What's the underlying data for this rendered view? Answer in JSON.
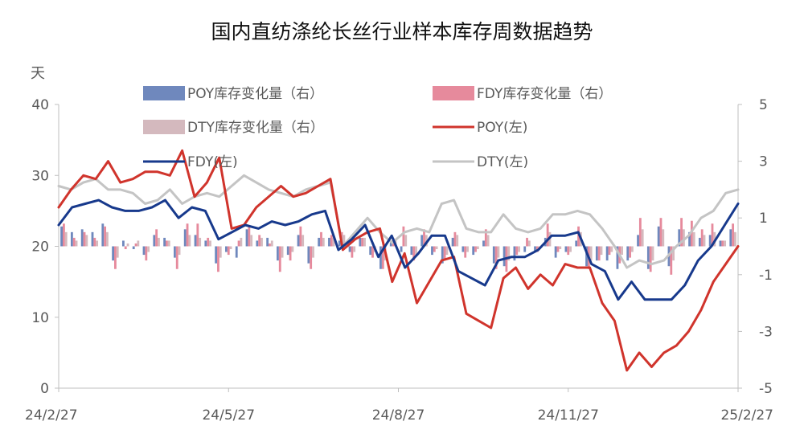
{
  "chart_data": {
    "type": "line",
    "title": "国内直纺涤纶长丝行业样本库存周数据趋势",
    "y_left_unit": "天",
    "ylim_left": [
      0,
      40
    ],
    "ylim_right": [
      -5,
      5
    ],
    "y_left_ticks": [
      "0",
      "10",
      "20",
      "30",
      "40"
    ],
    "y_right_ticks": [
      "-5",
      "-3",
      "-1",
      "1",
      "3",
      "5"
    ],
    "x_tick_labels": [
      "24/2/27",
      "24/5/27",
      "24/8/27",
      "24/11/27",
      "25/2/27"
    ],
    "grid": false,
    "legend_position": "top",
    "series": [
      {
        "name": "POY库存变化量（右）",
        "type": "bar",
        "axis": "right",
        "color": "#6f88bd",
        "values": [
          0.7,
          0.5,
          0.6,
          0.5,
          0.8,
          -0.5,
          0.2,
          -0.1,
          -0.3,
          0.4,
          0.3,
          -0.4,
          0.6,
          0.4,
          0.2,
          -0.6,
          -0.2,
          -0.4,
          0.6,
          0.2,
          0.3,
          -0.5,
          -0.3,
          0.4,
          -0.6,
          0.3,
          0.3,
          0.2,
          -0.2,
          0.3,
          -0.3,
          -0.8,
          0.2,
          -0.2,
          -0.3,
          0.4,
          -0.3,
          -0.6,
          0.3,
          -0.2,
          -0.3,
          0.2,
          -0.6,
          -0.7,
          -0.5,
          -0.2,
          -0.2,
          0.3,
          -0.4,
          -0.2,
          0.2,
          -0.7,
          -0.5,
          -0.5,
          -0.8,
          -0.5,
          0.4,
          -0.8,
          0.7,
          -0.7,
          0.6,
          0.5,
          0.3,
          0.4,
          0.2,
          0.6
        ]
      },
      {
        "name": "FDY库存变化量（右）",
        "type": "bar",
        "axis": "right",
        "color": "#e68a9c",
        "values": [
          0.8,
          0.3,
          0.5,
          0.3,
          0.7,
          -0.8,
          -0.1,
          0.1,
          -0.5,
          0.6,
          0.2,
          -0.8,
          0.8,
          0.8,
          0.3,
          -0.9,
          -0.3,
          0.2,
          0.7,
          0.4,
          0.1,
          -0.9,
          -0.5,
          0.7,
          -0.8,
          0.5,
          0.4,
          0.5,
          -0.4,
          0.3,
          -0.4,
          -0.8,
          0.3,
          0.7,
          -0.5,
          0.6,
          -0.2,
          -0.5,
          0.5,
          -0.4,
          -0.2,
          0.6,
          -0.8,
          -0.9,
          -0.3,
          0.3,
          -0.2,
          0.8,
          -0.2,
          -0.3,
          0.7,
          -0.8,
          -0.5,
          -0.3,
          -0.6,
          -0.4,
          1.0,
          -0.9,
          1.0,
          -1.0,
          1.0,
          0.9,
          0.6,
          0.8,
          0.2,
          0.8
        ]
      },
      {
        "name": "DTY库存变化量（右）",
        "type": "bar",
        "axis": "right",
        "color": "#d4b9be",
        "values": [
          0.5,
          0.2,
          0.4,
          0.2,
          0.5,
          -0.4,
          0.1,
          0.2,
          -0.2,
          0.3,
          0.2,
          -0.3,
          0.4,
          0.3,
          0.2,
          -0.4,
          -0.1,
          0.3,
          0.4,
          0.3,
          0.2,
          -0.4,
          -0.2,
          0.4,
          -0.4,
          0.3,
          0.3,
          0.4,
          -0.2,
          0.3,
          -0.2,
          -0.5,
          0.2,
          0.4,
          -0.3,
          0.4,
          -0.1,
          -0.3,
          0.4,
          -0.2,
          -0.1,
          0.4,
          -0.4,
          -0.5,
          -0.2,
          0.2,
          -0.1,
          0.5,
          -0.1,
          -0.2,
          0.5,
          -0.5,
          -0.3,
          -0.2,
          -0.3,
          -0.2,
          0.6,
          -0.5,
          0.6,
          -0.5,
          0.6,
          0.5,
          0.4,
          0.5,
          0.2,
          0.5
        ]
      },
      {
        "name": "POY(左)",
        "type": "line",
        "axis": "left",
        "color": "#d0342c",
        "values": [
          25.5,
          28,
          30,
          29.5,
          32,
          29,
          29.5,
          30.5,
          30.5,
          30,
          33.5,
          27,
          29,
          32.5,
          22.5,
          23,
          25.5,
          27,
          28.5,
          27,
          27.5,
          28.5,
          29.5,
          19.5,
          21,
          22,
          22.5,
          15,
          19,
          12,
          15,
          18,
          18.5,
          10.5,
          9.5,
          8.5,
          15.5,
          17,
          14,
          16,
          14.5,
          17.5,
          17,
          17,
          12,
          9.5,
          2.5,
          5,
          3,
          5,
          6,
          8,
          11,
          15,
          17.5,
          20
        ]
      },
      {
        "name": "FDY(左)",
        "type": "line",
        "axis": "left",
        "color": "#17398c",
        "values": [
          23,
          25.5,
          26,
          26.5,
          25.5,
          25,
          25,
          25.5,
          26.5,
          24,
          25.5,
          25,
          21,
          22,
          23,
          22.5,
          23.5,
          23,
          23.5,
          24.5,
          25,
          19.5,
          21,
          23,
          18.5,
          21.5,
          17,
          19,
          21.5,
          21.5,
          16.5,
          15.5,
          14.5,
          18,
          18.5,
          18.5,
          19.5,
          21.5,
          21.5,
          22,
          17.5,
          16.5,
          12.5,
          15,
          12.5,
          12.5,
          12.5,
          14.5,
          18,
          20,
          23,
          26
        ]
      },
      {
        "name": "DTY(左)",
        "type": "line",
        "axis": "left",
        "color": "#c4c4c4",
        "values": [
          28.5,
          28,
          29,
          29.5,
          28,
          28,
          27.5,
          26,
          26.5,
          28,
          26,
          27,
          27.5,
          27,
          28.5,
          30,
          29,
          28,
          27.5,
          27,
          28,
          28.5,
          29,
          20,
          22,
          24,
          22,
          20.5,
          22,
          22.5,
          22,
          26,
          26.5,
          22.5,
          22,
          22,
          24.5,
          22.5,
          22,
          22.5,
          24.5,
          24.5,
          25,
          24.5,
          22.5,
          20,
          17,
          18,
          17.5,
          18,
          20,
          21.5,
          24,
          25,
          27.5,
          28
        ]
      }
    ]
  }
}
